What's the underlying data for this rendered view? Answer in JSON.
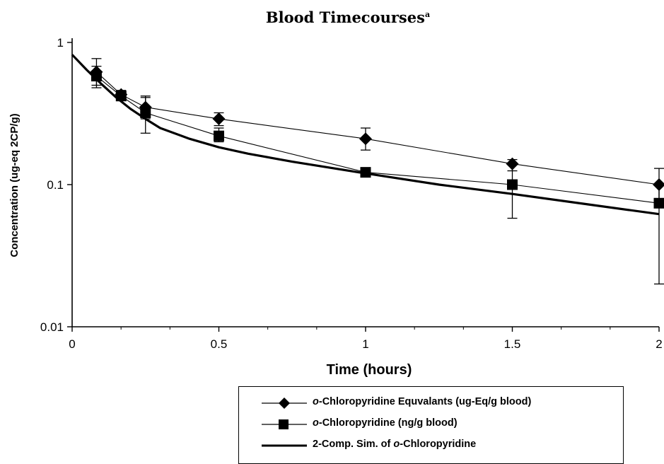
{
  "chart_data": {
    "type": "line",
    "title": "Blood Timecourses",
    "title_superscript": "a",
    "xlabel": "Time (hours)",
    "ylabel": "Concentration (ug-eq 2CP/g)",
    "xlim": [
      0,
      2
    ],
    "ylim": [
      0.01,
      1
    ],
    "yscale": "log",
    "x_ticks": [
      "0",
      "0.5",
      "1",
      "1.5",
      "2"
    ],
    "y_ticks": [
      "0.01",
      "0.1",
      "1"
    ],
    "legend_position": "bottom-right",
    "series": [
      {
        "name": "o-Chloropyridine Equvalants (ug-Eq/g blood)",
        "name_italic": "o",
        "name_rest": "-Chloropyridine Equvalants (ug-Eq/g blood)",
        "marker": "diamond",
        "x": [
          0.083,
          0.167,
          0.25,
          0.5,
          1,
          1.5,
          2
        ],
        "y": [
          0.62,
          0.43,
          0.35,
          0.29,
          0.21,
          0.14,
          0.1
        ],
        "err_low": [
          0.5,
          0.4,
          0.29,
          0.26,
          0.175,
          0.125,
          0.075
        ],
        "err_high": [
          0.77,
          0.46,
          0.42,
          0.32,
          0.25,
          0.15,
          0.13
        ]
      },
      {
        "name": "o-Chloropyridine (ng/g blood)",
        "name_italic": "o",
        "name_rest": "-Chloropyridine (ng/g blood)",
        "marker": "square",
        "x": [
          0.083,
          0.167,
          0.25,
          0.5,
          1,
          1.5,
          2
        ],
        "y": [
          0.58,
          0.42,
          0.32,
          0.22,
          0.122,
          0.1,
          0.074
        ],
        "err_low": [
          0.48,
          0.4,
          0.23,
          0.2,
          0.115,
          0.058,
          0.02
        ],
        "err_high": [
          0.68,
          0.44,
          0.41,
          0.25,
          0.13,
          0.14,
          0.1
        ]
      },
      {
        "name": "2-Comp. Sim. of o-Chloropyridine",
        "name_prefix": "2-Comp. Sim. of ",
        "name_italic": "o",
        "name_rest": "-Chloropyridine",
        "marker": "none",
        "x": [
          0,
          0.05,
          0.1,
          0.15,
          0.2,
          0.25,
          0.3,
          0.4,
          0.5,
          0.6,
          0.75,
          1.0,
          1.25,
          1.5,
          1.75,
          2.0
        ],
        "y": [
          0.82,
          0.64,
          0.51,
          0.41,
          0.34,
          0.29,
          0.25,
          0.21,
          0.183,
          0.165,
          0.145,
          0.12,
          0.1,
          0.086,
          0.073,
          0.062
        ]
      }
    ]
  }
}
